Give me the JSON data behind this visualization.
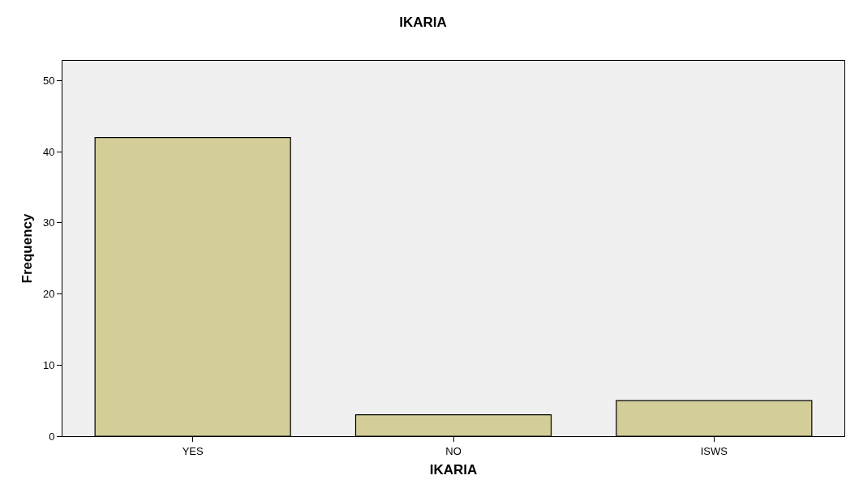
{
  "chart_data": {
    "type": "bar",
    "title": "IKARIA",
    "xlabel": "IKARIA",
    "ylabel": "Frequency",
    "categories": [
      "YES",
      "NO",
      "ISWS"
    ],
    "values": [
      42,
      3,
      5
    ],
    "color": "#d3ce97",
    "ylim": [
      0,
      52.8
    ],
    "yticks": [
      0,
      10,
      20,
      30,
      40,
      50
    ],
    "grid": false
  }
}
